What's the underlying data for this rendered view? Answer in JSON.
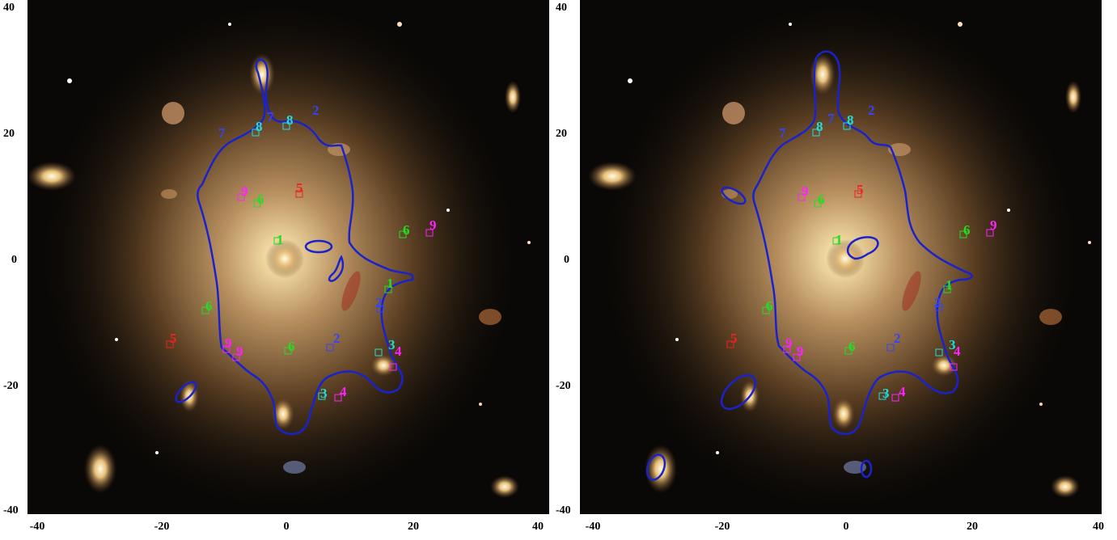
{
  "panels": [
    {
      "name": "left",
      "x_ticks": [
        "-40",
        "-20",
        "0",
        "20",
        "40"
      ],
      "y_ticks": [
        "40",
        "20",
        "0",
        "-20",
        "-40"
      ],
      "image_labels": [
        {
          "text": "1",
          "color": "#22dd22"
        },
        {
          "text": "1",
          "color": "#22dd22"
        },
        {
          "text": "2",
          "color": "#3344ff"
        },
        {
          "text": "2",
          "color": "#3344ff"
        },
        {
          "text": "2",
          "color": "#3344ff"
        },
        {
          "text": "3",
          "color": "#22dddd"
        },
        {
          "text": "3",
          "color": "#22dddd"
        },
        {
          "text": "4",
          "color": "#ff22ff"
        },
        {
          "text": "4",
          "color": "#ff22ff"
        },
        {
          "text": "5",
          "color": "#ee2222"
        },
        {
          "text": "5",
          "color": "#ee2222"
        },
        {
          "text": "6",
          "color": "#22dd22"
        },
        {
          "text": "6",
          "color": "#22dd22"
        },
        {
          "text": "6",
          "color": "#22dd22"
        },
        {
          "text": "6",
          "color": "#22dd22"
        },
        {
          "text": "7",
          "color": "#3344ff"
        },
        {
          "text": "7",
          "color": "#3344ff"
        },
        {
          "text": "8",
          "color": "#22dddd"
        },
        {
          "text": "8",
          "color": "#22dddd"
        },
        {
          "text": "9",
          "color": "#ff22ff"
        },
        {
          "text": "9",
          "color": "#ff22ff"
        },
        {
          "text": "9",
          "color": "#ff22ff"
        },
        {
          "text": "9",
          "color": "#ff22ff"
        }
      ]
    },
    {
      "name": "right",
      "x_ticks": [
        "-40",
        "-20",
        "0",
        "20",
        "40"
      ],
      "y_ticks": [
        "40",
        "20",
        "0",
        "-20",
        "-40"
      ],
      "image_labels": [
        {
          "text": "1",
          "color": "#22dd22"
        },
        {
          "text": "1",
          "color": "#22dd22"
        },
        {
          "text": "2",
          "color": "#3344ff"
        },
        {
          "text": "2",
          "color": "#3344ff"
        },
        {
          "text": "2",
          "color": "#3344ff"
        },
        {
          "text": "3",
          "color": "#22dddd"
        },
        {
          "text": "3",
          "color": "#22dddd"
        },
        {
          "text": "4",
          "color": "#ff22ff"
        },
        {
          "text": "4",
          "color": "#ff22ff"
        },
        {
          "text": "5",
          "color": "#ee2222"
        },
        {
          "text": "5",
          "color": "#ee2222"
        },
        {
          "text": "6",
          "color": "#22dd22"
        },
        {
          "text": "6",
          "color": "#22dd22"
        },
        {
          "text": "6",
          "color": "#22dd22"
        },
        {
          "text": "6",
          "color": "#22dd22"
        },
        {
          "text": "7",
          "color": "#3344ff"
        },
        {
          "text": "7",
          "color": "#3344ff"
        },
        {
          "text": "8",
          "color": "#22dddd"
        },
        {
          "text": "8",
          "color": "#22dddd"
        },
        {
          "text": "9",
          "color": "#ff22ff"
        },
        {
          "text": "9",
          "color": "#ff22ff"
        },
        {
          "text": "9",
          "color": "#ff22ff"
        },
        {
          "text": "9",
          "color": "#ff22ff"
        }
      ]
    }
  ],
  "colors": {
    "critical_curve": "#1a22cc",
    "background": "#0a0806",
    "cluster_glow": "#c8a060"
  }
}
